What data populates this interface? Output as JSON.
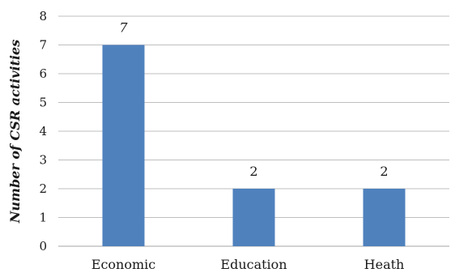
{
  "chart_data": {
    "type": "bar",
    "title": "",
    "xlabel": "",
    "ylabel": "Number of CSR activities",
    "categories": [
      "Economic",
      "Education",
      "Heath"
    ],
    "values": [
      7,
      2,
      2
    ],
    "data_labels": [
      "7",
      "2",
      "2"
    ],
    "ylim": [
      0,
      8
    ],
    "yticks": [
      0,
      1,
      2,
      3,
      4,
      5,
      6,
      7,
      8
    ],
    "grid": true,
    "legend": "none",
    "bar_color": "#4f81bd"
  }
}
